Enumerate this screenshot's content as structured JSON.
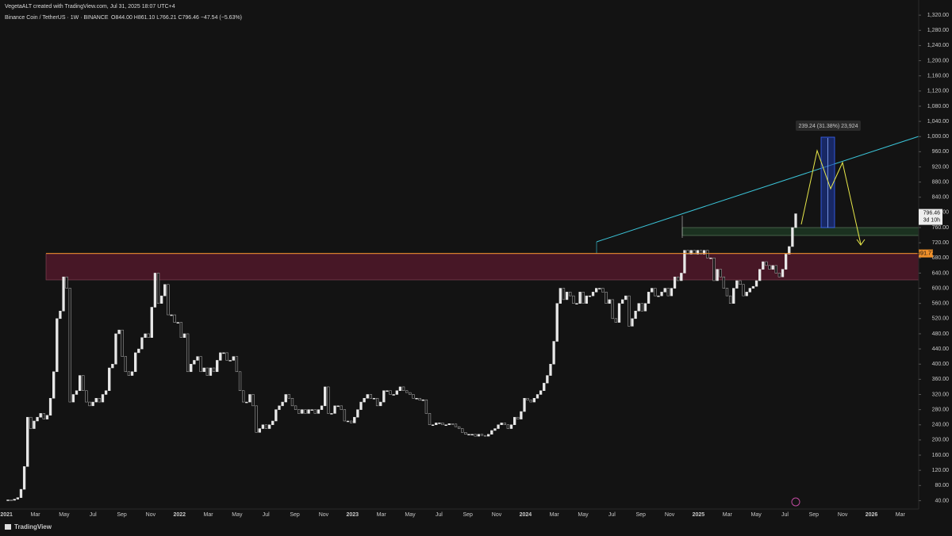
{
  "header": {
    "credit": "VegetaALT created with TradingView.com, Jul 31, 2025 18:07 UTC+4",
    "symbol": "Binance Coin / TetherUS · 1W · BINANCE",
    "ohlc": "O844.00 H861.10 L766.21 C796.46 −47.54 (−5.63%)",
    "brand": "TradingView"
  },
  "chart_data": {
    "type": "candlestick",
    "close": [
      42,
      41,
      44,
      48,
      70,
      130,
      260,
      230,
      250,
      260,
      270,
      255,
      265,
      310,
      380,
      520,
      540,
      630,
      600,
      300,
      320,
      330,
      370,
      330,
      300,
      290,
      300,
      310,
      300,
      320,
      330,
      390,
      400,
      480,
      490,
      420,
      380,
      370,
      380,
      430,
      440,
      470,
      480,
      470,
      550,
      640,
      560,
      580,
      610,
      530,
      530,
      510,
      510,
      470,
      480,
      380,
      400,
      410,
      420,
      380,
      390,
      370,
      390,
      380,
      410,
      430,
      430,
      410,
      410,
      420,
      380,
      330,
      300,
      300,
      320,
      290,
      220,
      230,
      240,
      230,
      240,
      250,
      280,
      290,
      300,
      320,
      310,
      290,
      280,
      270,
      280,
      270,
      280,
      280,
      270,
      280,
      290,
      340,
      270,
      270,
      290,
      290,
      280,
      250,
      250,
      245,
      260,
      280,
      300,
      310,
      320,
      310,
      310,
      290,
      300,
      330,
      330,
      320,
      320,
      330,
      340,
      330,
      325,
      320,
      310,
      310,
      305,
      306,
      270,
      240,
      240,
      245,
      245,
      240,
      240,
      243,
      242,
      235,
      230,
      220,
      215,
      215,
      215,
      210,
      215,
      212,
      210,
      215,
      225,
      230,
      240,
      245,
      240,
      230,
      240,
      260,
      255,
      275,
      310,
      305,
      300,
      310,
      320,
      330,
      350,
      370,
      400,
      460,
      560,
      600,
      570,
      590,
      580,
      560,
      560,
      590,
      560,
      580,
      580,
      590,
      600,
      600,
      590,
      560,
      570,
      520,
      510,
      560,
      570,
      580,
      500,
      520,
      540,
      560,
      540,
      560,
      590,
      600,
      580,
      580,
      590,
      600,
      580,
      600,
      630,
      620,
      640,
      700,
      690,
      700,
      690,
      700,
      690,
      700,
      680,
      680,
      620,
      650,
      630,
      600,
      580,
      560,
      600,
      620,
      610,
      580,
      590,
      600,
      605,
      620,
      650,
      670,
      660,
      650,
      660,
      640,
      630,
      650,
      690,
      710,
      760,
      796.46
    ],
    "last_label": "796.46",
    "countdown": "3d 10h",
    "level": {
      "value": 691.77,
      "label": "691.77"
    },
    "measure": "239.24 (31.38%) 23,924",
    "ylim": [
      20,
      1360
    ],
    "yticks": [
      {
        "value": 40,
        "label": "40.00"
      },
      {
        "value": 80,
        "label": "80.00"
      },
      {
        "value": 120,
        "label": "120.00"
      },
      {
        "value": 160,
        "label": "160.00"
      },
      {
        "value": 200,
        "label": "200.00"
      },
      {
        "value": 240,
        "label": "240.00"
      },
      {
        "value": 280,
        "label": "280.00"
      },
      {
        "value": 320,
        "label": "320.00"
      },
      {
        "value": 360,
        "label": "360.00"
      },
      {
        "value": 400,
        "label": "400.00"
      },
      {
        "value": 440,
        "label": "440.00"
      },
      {
        "value": 480,
        "label": "480.00"
      },
      {
        "value": 520,
        "label": "520.00"
      },
      {
        "value": 560,
        "label": "560.00"
      },
      {
        "value": 600,
        "label": "600.00"
      },
      {
        "value": 640,
        "label": "640.00"
      },
      {
        "value": 680,
        "label": "680.00"
      },
      {
        "value": 720,
        "label": "720.00"
      },
      {
        "value": 760,
        "label": "760.00"
      },
      {
        "value": 800,
        "label": "800.00"
      },
      {
        "value": 840,
        "label": "840.00"
      },
      {
        "value": 880,
        "label": "880.00"
      },
      {
        "value": 920,
        "label": "920.00"
      },
      {
        "value": 960,
        "label": "960.00"
      },
      {
        "value": 1000,
        "label": "1,000.00"
      },
      {
        "value": 1040,
        "label": "1,040.00"
      },
      {
        "value": 1080,
        "label": "1,080.00"
      },
      {
        "value": 1120,
        "label": "1,120.00"
      },
      {
        "value": 1160,
        "label": "1,160.00"
      },
      {
        "value": 1200,
        "label": "1,200.00"
      },
      {
        "value": 1240,
        "label": "1,240.00"
      },
      {
        "value": 1280,
        "label": "1,280.00"
      },
      {
        "value": 1320,
        "label": "1,320.00"
      }
    ],
    "xlim": [
      "2020-12",
      "2026-04"
    ],
    "xticks": [
      {
        "value": "2021-01",
        "label": "2021"
      },
      {
        "value": "2021-03",
        "label": "Mar"
      },
      {
        "value": "2021-05",
        "label": "May"
      },
      {
        "value": "2021-07",
        "label": "Jul"
      },
      {
        "value": "2021-09",
        "label": "Sep"
      },
      {
        "value": "2021-11",
        "label": "Nov"
      },
      {
        "value": "2022-01",
        "label": "2022"
      },
      {
        "value": "2022-03",
        "label": "Mar"
      },
      {
        "value": "2022-05",
        "label": "May"
      },
      {
        "value": "2022-07",
        "label": "Jul"
      },
      {
        "value": "2022-09",
        "label": "Sep"
      },
      {
        "value": "2022-11",
        "label": "Nov"
      },
      {
        "value": "2023-01",
        "label": "2023"
      },
      {
        "value": "2023-03",
        "label": "Mar"
      },
      {
        "value": "2023-05",
        "label": "May"
      },
      {
        "value": "2023-07",
        "label": "Jul"
      },
      {
        "value": "2023-09",
        "label": "Sep"
      },
      {
        "value": "2023-11",
        "label": "Nov"
      },
      {
        "value": "2024-01",
        "label": "2024"
      },
      {
        "value": "2024-03",
        "label": "Mar"
      },
      {
        "value": "2024-05",
        "label": "May"
      },
      {
        "value": "2024-07",
        "label": "Jul"
      },
      {
        "value": "2024-09",
        "label": "Sep"
      },
      {
        "value": "2024-11",
        "label": "Nov"
      },
      {
        "value": "2025-01",
        "label": "2025"
      },
      {
        "value": "2025-03",
        "label": "Mar"
      },
      {
        "value": "2025-05",
        "label": "May"
      },
      {
        "value": "2025-07",
        "label": "Jul"
      },
      {
        "value": "2025-09",
        "label": "Sep"
      },
      {
        "value": "2025-11",
        "label": "Nov"
      },
      {
        "value": "2026-01",
        "label": "2026"
      },
      {
        "value": "2026-03",
        "label": "Mar"
      }
    ]
  }
}
